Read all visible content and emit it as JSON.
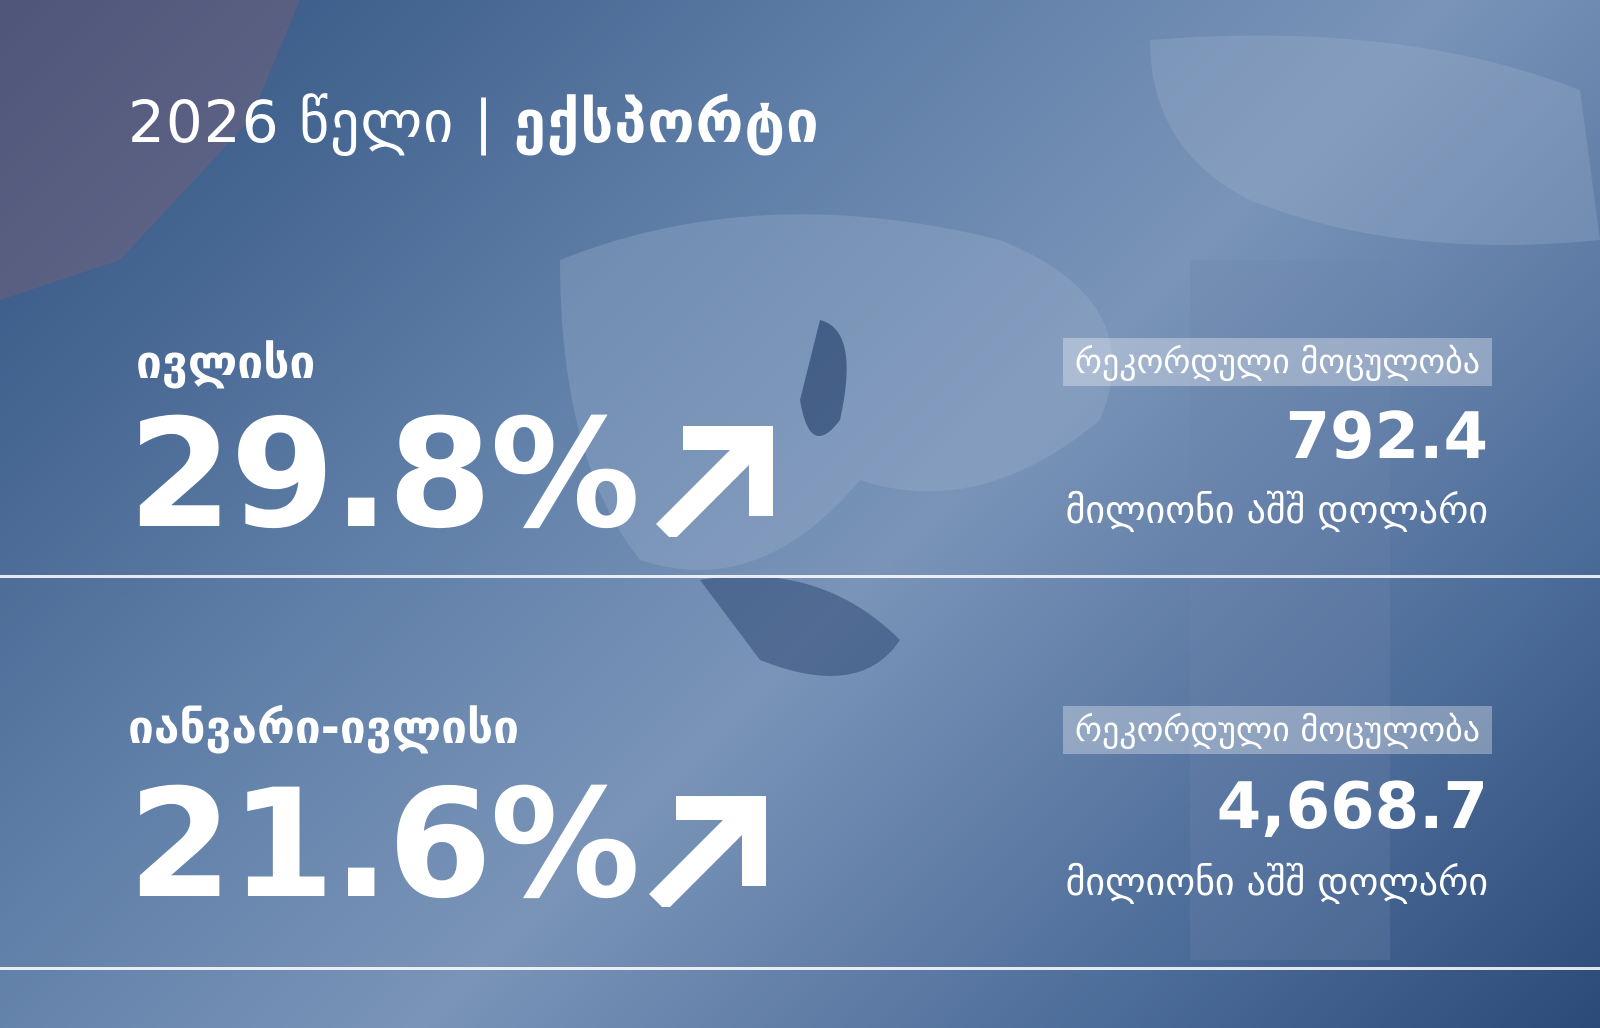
{
  "header": {
    "year": "2026 წელი",
    "separator": "|",
    "topic": "ექსპორტი"
  },
  "sections": [
    {
      "period": "ივლისი",
      "growth": "29.8%",
      "record_label": "რეკორდული მოცულობა",
      "record_value": "792.4",
      "unit": "მილიონი აშშ დოლარი"
    },
    {
      "period": "იანვარი-ივლისი",
      "growth": "21.6%",
      "record_label": "რეკორდული მოცულობა",
      "record_value": "4,668.7",
      "unit": "მილიონი აშშ დოლარი"
    }
  ]
}
